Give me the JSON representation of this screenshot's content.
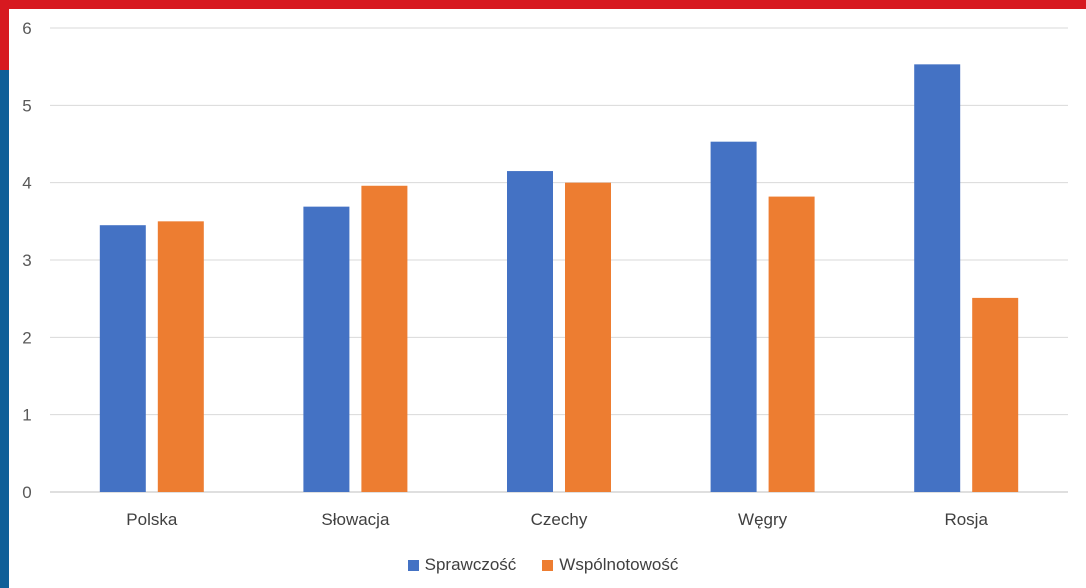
{
  "frame": {
    "red": "#d71920",
    "blue": "#0f5f98"
  },
  "chart_data": {
    "type": "bar",
    "title": "",
    "xlabel": "",
    "ylabel": "",
    "categories": [
      "Polska",
      "Słowacja",
      "Czechy",
      "Węgry",
      "Rosja"
    ],
    "series": [
      {
        "name": "Sprawczość",
        "color": "#4472c4",
        "values": [
          3.45,
          3.69,
          4.15,
          4.53,
          5.53
        ]
      },
      {
        "name": "Wspólnotowość",
        "color": "#ed7d31",
        "values": [
          3.5,
          3.96,
          4.0,
          3.82,
          2.51
        ]
      }
    ],
    "ylim": [
      0,
      6
    ],
    "yticks": [
      "0",
      "1",
      "2",
      "3",
      "4",
      "5",
      "6"
    ],
    "grid": true,
    "legend_position": "bottom"
  }
}
